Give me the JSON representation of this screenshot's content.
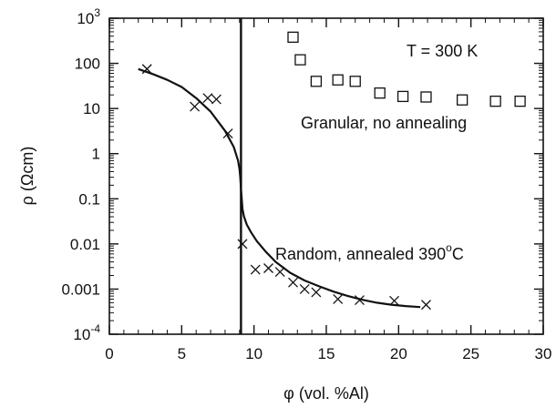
{
  "chart_data": {
    "type": "scatter",
    "xlabel": "φ (vol. %Al)",
    "ylabel": "ρ (Ωcm)",
    "xlim": [
      0,
      30
    ],
    "ylim": [
      0.0001,
      1000
    ],
    "yscale": "log",
    "x_ticks": [
      0,
      5,
      10,
      15,
      20,
      25,
      30
    ],
    "x_tick_labels": [
      "0",
      "5",
      "10",
      "15",
      "20",
      "25",
      "30"
    ],
    "y_ticks": [
      0.0001,
      0.001,
      0.01,
      0.1,
      1,
      10,
      100,
      1000
    ],
    "y_tick_labels": [
      {
        "base": "10",
        "exp": "-4"
      },
      {
        "base": "0.001",
        "exp": ""
      },
      {
        "base": "0.01",
        "exp": ""
      },
      {
        "base": "0.1",
        "exp": ""
      },
      {
        "base": "1",
        "exp": ""
      },
      {
        "base": "10",
        "exp": ""
      },
      {
        "base": "100",
        "exp": ""
      },
      {
        "base": "10",
        "exp": "3"
      }
    ],
    "grid": false,
    "annotations": {
      "temperature": "T = 300 K",
      "granular": "Granular, no annealing",
      "random_prefix": "Random, annealed 390",
      "random_sup": "o",
      "random_suffix": "C"
    },
    "series": [
      {
        "marker": "square",
        "x": [
          12.7,
          13.2,
          14.3,
          15.8,
          17.0,
          18.7,
          20.3,
          21.9,
          24.4,
          26.7,
          28.4
        ],
        "y": [
          380,
          120,
          40,
          43,
          40,
          22,
          18.5,
          18,
          15.5,
          14.5,
          14.5
        ]
      },
      {
        "marker": "x",
        "x": [
          2.6,
          5.9,
          6.8,
          7.4,
          8.2,
          9.2,
          10.1,
          11.0,
          11.8,
          12.7,
          13.5,
          14.3,
          15.8,
          17.3,
          19.7,
          21.9
        ],
        "y": [
          75,
          11,
          17,
          16,
          2.8,
          0.01,
          0.0027,
          0.0029,
          0.0024,
          0.0014,
          0.001,
          0.00085,
          0.0006,
          0.00057,
          0.00055,
          0.00045
        ]
      },
      {
        "marker": "none",
        "curve": true,
        "x": [
          2.0,
          3.0,
          4.0,
          5.0,
          6.0,
          7.0,
          8.0,
          8.6,
          8.9,
          9.0,
          9.05,
          9.1,
          9.15,
          9.2,
          9.3,
          9.5,
          9.8,
          10.2,
          10.8,
          11.5,
          12.5,
          13.5,
          14.5,
          15.5,
          16.5,
          17.5,
          18.5,
          19.5,
          20.5,
          21.5
        ],
        "y": [
          75,
          58,
          43,
          30,
          17,
          8.5,
          3.2,
          1.4,
          0.7,
          0.45,
          0.3,
          0.16,
          0.1,
          0.06,
          0.041,
          0.027,
          0.018,
          0.0115,
          0.0068,
          0.004,
          0.0023,
          0.00155,
          0.00115,
          0.00088,
          0.0007,
          0.00058,
          0.0005,
          0.00045,
          0.00042,
          0.0004
        ]
      }
    ],
    "threshold_x": 9.1
  }
}
